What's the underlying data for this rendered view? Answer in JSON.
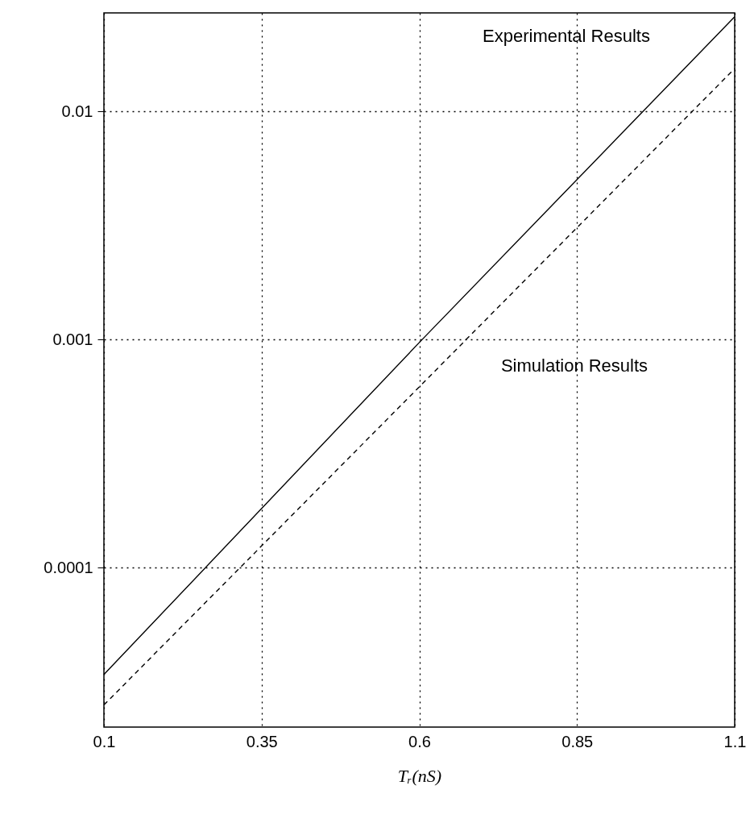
{
  "chart_data": {
    "type": "line",
    "xlabel": "Tᵣ(nS)",
    "log": "y",
    "grid": true,
    "xlim": [
      0.1,
      1.1
    ],
    "xticks": [
      0.1,
      0.35,
      0.6,
      0.85,
      1.1
    ],
    "ylim": [
      2e-05,
      0.027
    ],
    "yticks": [
      0.0001,
      0.001,
      0.01
    ],
    "series": [
      {
        "color": "#000000",
        "line_style": "solid",
        "x": [
          0.1,
          0.6,
          1.1
        ],
        "values": [
          3.4e-05,
          0.00097,
          0.026
        ]
      },
      {
        "color": "#000000",
        "line_style": "dashed",
        "x": [
          0.1,
          0.6,
          1.1
        ],
        "values": [
          2.5e-05,
          0.00062,
          0.0154
        ]
      }
    ],
    "annotations": [
      "Experimental Results",
      "Simulation Results"
    ]
  }
}
